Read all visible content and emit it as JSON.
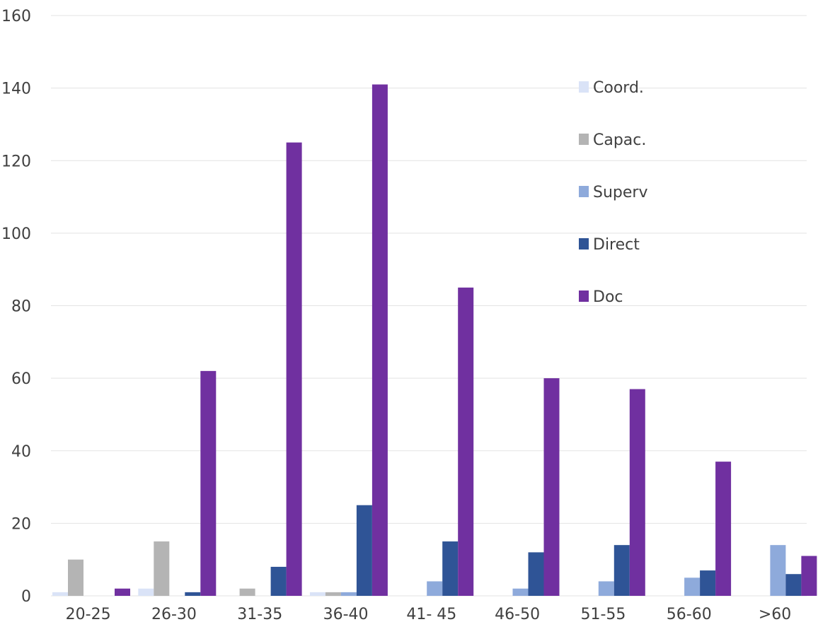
{
  "chart_data": {
    "type": "bar",
    "categories": [
      "20-25",
      "26-30",
      "31-35",
      "36-40",
      "41- 45",
      "46-50",
      "51-55",
      "56-60",
      ">60"
    ],
    "series": [
      {
        "name": "Coord.",
        "color": "#dae3f7",
        "values": [
          1,
          2,
          0,
          1,
          0,
          0,
          0,
          0,
          0
        ]
      },
      {
        "name": "Capac.",
        "color": "#b4b4b4",
        "values": [
          10,
          15,
          2,
          1,
          0,
          0,
          0,
          0,
          0
        ]
      },
      {
        "name": "Superv",
        "color": "#8eaadb",
        "values": [
          0,
          0,
          0,
          1,
          4,
          2,
          4,
          5,
          14
        ]
      },
      {
        "name": "Direct",
        "color": "#2f5496",
        "values": [
          0,
          1,
          8,
          25,
          15,
          12,
          14,
          7,
          6
        ]
      },
      {
        "name": "Doc",
        "color": "#7030a0",
        "values": [
          2,
          62,
          125,
          141,
          85,
          60,
          57,
          37,
          11
        ]
      }
    ],
    "ylim": [
      0,
      160
    ],
    "yticks": [
      0,
      20,
      40,
      60,
      80,
      100,
      120,
      140,
      160
    ],
    "grid": true,
    "legend_position": "top-right",
    "title": "",
    "xlabel": "",
    "ylabel": ""
  }
}
